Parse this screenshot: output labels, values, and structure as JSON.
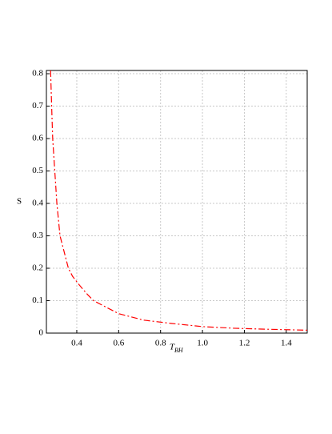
{
  "chart_data": {
    "type": "line",
    "ylabel": "S",
    "xlabel": "T",
    "xlabel_sub": "BH",
    "x": [
      0.275,
      0.28,
      0.285,
      0.295,
      0.305,
      0.32,
      0.34,
      0.36,
      0.38,
      0.41,
      0.45,
      0.48,
      0.54,
      0.6,
      0.72,
      0.85,
      1.0,
      1.15,
      1.3,
      1.5
    ],
    "series": [
      {
        "name": "S",
        "color": "#ff0000",
        "values": [
          0.81,
          0.7,
          0.6,
          0.5,
          0.4,
          0.3,
          0.25,
          0.2,
          0.175,
          0.15,
          0.12,
          0.1,
          0.08,
          0.06,
          0.04,
          0.03,
          0.02,
          0.015,
          0.012,
          0.009
        ]
      }
    ],
    "xlim": [
      0.255,
      1.5
    ],
    "xticks": [
      0.4,
      0.6,
      0.8,
      {
        "value": 1,
        "label": "1.0"
      },
      1.2,
      1.4
    ],
    "ylim": [
      0,
      0.81
    ],
    "yticks": [
      0,
      0.1,
      0.2,
      0.3,
      0.4,
      0.5,
      0.6,
      0.7,
      0.8
    ],
    "grid": true
  }
}
